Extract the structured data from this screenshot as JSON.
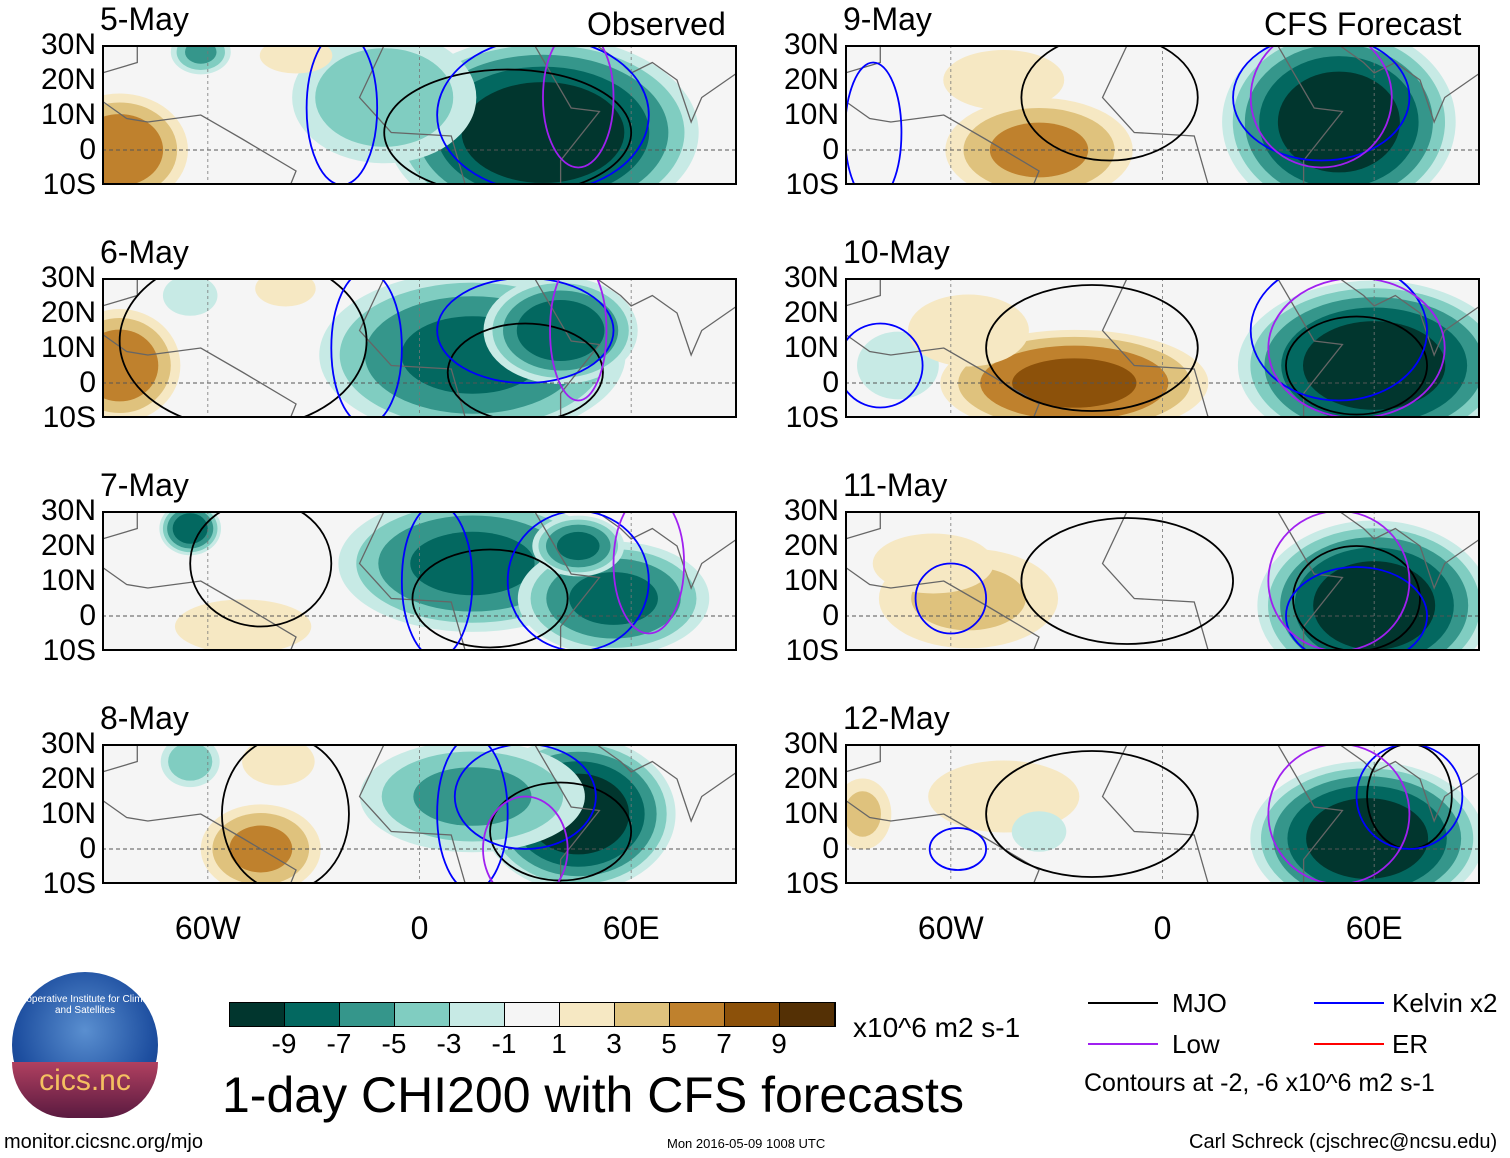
{
  "labels": {
    "observed": "Observed",
    "forecast": "CFS Forecast"
  },
  "lat_ticks": [
    "30N",
    "20N",
    "10N",
    "0",
    "10S"
  ],
  "lon_ticks": [
    "60W",
    "0",
    "60E"
  ],
  "colors": {
    "levels": [
      "#01362e",
      "#036860",
      "#35968b",
      "#80cdc1",
      "#c7eae5",
      "#f5f5f5",
      "#f6e8c3",
      "#dfc27d",
      "#bf812d",
      "#8c510a",
      "#543005"
    ],
    "mjo": "#000000",
    "kelvin": "#0000ff",
    "low": "#a020f0",
    "er": "#ff0000"
  },
  "chart_data": {
    "type": "heatmap",
    "title": "1-day CHI200 with CFS forecasts",
    "units": "x10^6 m2 s-1",
    "lon_range": [
      -90,
      90
    ],
    "lat_range": [
      -10,
      30
    ],
    "colorbar": {
      "ticks": [
        "-9",
        "-7",
        "-5",
        "-3",
        "-1",
        "1",
        "3",
        "5",
        "7",
        "9"
      ]
    },
    "panels": [
      {
        "date": "5-May",
        "anoms": [
          [
            35,
            5,
            -11,
            40,
            25
          ],
          [
            -10,
            15,
            -5,
            25,
            18
          ],
          [
            -62,
            28,
            -6,
            8,
            6
          ],
          [
            -85,
            0,
            7,
            18,
            15
          ],
          [
            -35,
            27,
            2,
            12,
            6
          ]
        ],
        "mjo": [
          [
            25,
            5,
            35,
            18
          ]
        ],
        "kelvin": [
          [
            35,
            10,
            30,
            22
          ],
          [
            -22,
            12,
            10,
            22
          ]
        ],
        "low": [
          [
            45,
            15,
            10,
            20
          ]
        ]
      },
      {
        "date": "6-May",
        "anoms": [
          [
            15,
            8,
            -8,
            40,
            22
          ],
          [
            40,
            15,
            -9,
            20,
            14
          ],
          [
            -65,
            25,
            -3,
            8,
            6
          ],
          [
            -85,
            5,
            7,
            16,
            15
          ],
          [
            -38,
            27,
            2,
            10,
            6
          ]
        ],
        "mjo": [
          [
            30,
            3,
            22,
            14
          ],
          [
            -50,
            12,
            35,
            25
          ]
        ],
        "kelvin": [
          [
            30,
            15,
            25,
            15
          ],
          [
            -15,
            10,
            10,
            22
          ]
        ],
        "low": [
          [
            45,
            15,
            8,
            20
          ]
        ]
      },
      {
        "date": "7-May",
        "anoms": [
          [
            15,
            15,
            -8,
            35,
            18
          ],
          [
            55,
            5,
            -8,
            25,
            15
          ],
          [
            -65,
            25,
            -9,
            8,
            7
          ],
          [
            45,
            20,
            -8,
            12,
            8
          ],
          [
            -50,
            -3,
            3,
            20,
            8
          ]
        ],
        "mjo": [
          [
            -45,
            15,
            20,
            18
          ],
          [
            20,
            5,
            22,
            14
          ]
        ],
        "kelvin": [
          [
            5,
            10,
            10,
            22
          ],
          [
            45,
            10,
            20,
            20
          ]
        ],
        "low": [
          [
            65,
            15,
            10,
            20
          ]
        ]
      },
      {
        "date": "8-May",
        "anoms": [
          [
            45,
            10,
            -11,
            25,
            20
          ],
          [
            15,
            15,
            -6,
            30,
            15
          ],
          [
            -65,
            25,
            -5,
            8,
            7
          ],
          [
            -45,
            0,
            6,
            16,
            12
          ],
          [
            -40,
            25,
            2,
            12,
            8
          ]
        ],
        "mjo": [
          [
            -38,
            10,
            18,
            22
          ],
          [
            40,
            5,
            20,
            14
          ]
        ],
        "kelvin": [
          [
            15,
            10,
            10,
            22
          ],
          [
            30,
            15,
            20,
            15
          ]
        ],
        "low": [
          [
            30,
            0,
            12,
            15
          ]
        ]
      },
      {
        "date": "9-May",
        "anoms": [
          [
            50,
            8,
            -11,
            30,
            25
          ],
          [
            -35,
            0,
            6,
            25,
            14
          ],
          [
            -45,
            20,
            2,
            20,
            10
          ]
        ],
        "mjo": [
          [
            -15,
            15,
            25,
            18
          ]
        ],
        "kelvin": [
          [
            45,
            15,
            25,
            18
          ],
          [
            -82,
            5,
            8,
            20
          ]
        ],
        "low": [
          [
            45,
            15,
            20,
            20
          ]
        ]
      },
      {
        "date": "10-May",
        "anoms": [
          [
            60,
            5,
            -11,
            35,
            22
          ],
          [
            -25,
            0,
            8,
            35,
            14
          ],
          [
            -75,
            5,
            -3,
            12,
            10
          ],
          [
            -55,
            15,
            2,
            20,
            12
          ]
        ],
        "mjo": [
          [
            -20,
            10,
            30,
            18
          ],
          [
            55,
            5,
            20,
            14
          ]
        ],
        "kelvin": [
          [
            -80,
            5,
            12,
            12
          ],
          [
            50,
            15,
            25,
            20
          ]
        ],
        "low": [
          [
            55,
            10,
            25,
            20
          ]
        ]
      },
      {
        "date": "11-May",
        "anoms": [
          [
            60,
            3,
            -11,
            30,
            22
          ],
          [
            -55,
            5,
            4,
            25,
            14
          ],
          [
            -65,
            15,
            2,
            20,
            10
          ]
        ],
        "mjo": [
          [
            -10,
            10,
            30,
            18
          ],
          [
            55,
            5,
            18,
            15
          ]
        ],
        "kelvin": [
          [
            -60,
            5,
            10,
            10
          ],
          [
            55,
            0,
            20,
            14
          ]
        ],
        "low": [
          [
            50,
            10,
            20,
            20
          ]
        ]
      },
      {
        "date": "12-May",
        "anoms": [
          [
            58,
            3,
            -11,
            30,
            20
          ],
          [
            -45,
            15,
            2,
            25,
            12
          ],
          [
            -85,
            10,
            4,
            8,
            10
          ],
          [
            -35,
            5,
            -3,
            8,
            6
          ]
        ],
        "mjo": [
          [
            -20,
            10,
            30,
            18
          ],
          [
            70,
            15,
            12,
            15
          ]
        ],
        "kelvin": [
          [
            -58,
            0,
            8,
            6
          ],
          [
            70,
            15,
            15,
            15
          ]
        ],
        "low": [
          [
            50,
            10,
            20,
            20
          ]
        ]
      }
    ]
  },
  "legend": {
    "mjo": "MJO",
    "kelvin": "Kelvin x2",
    "low": "Low",
    "er": "ER",
    "note": "Contours at -2, -6 x10^6 m2 s-1"
  },
  "logo": {
    "text": "cics.nc",
    "ring": "Cooperative Institute for Climate and Satellites"
  },
  "footer": {
    "url": "monitor.cicsnc.org/mjo",
    "timestamp": "Mon 2016-05-09 1008 UTC",
    "author": "Carl Schreck (cjschrec@ncsu.edu)"
  }
}
